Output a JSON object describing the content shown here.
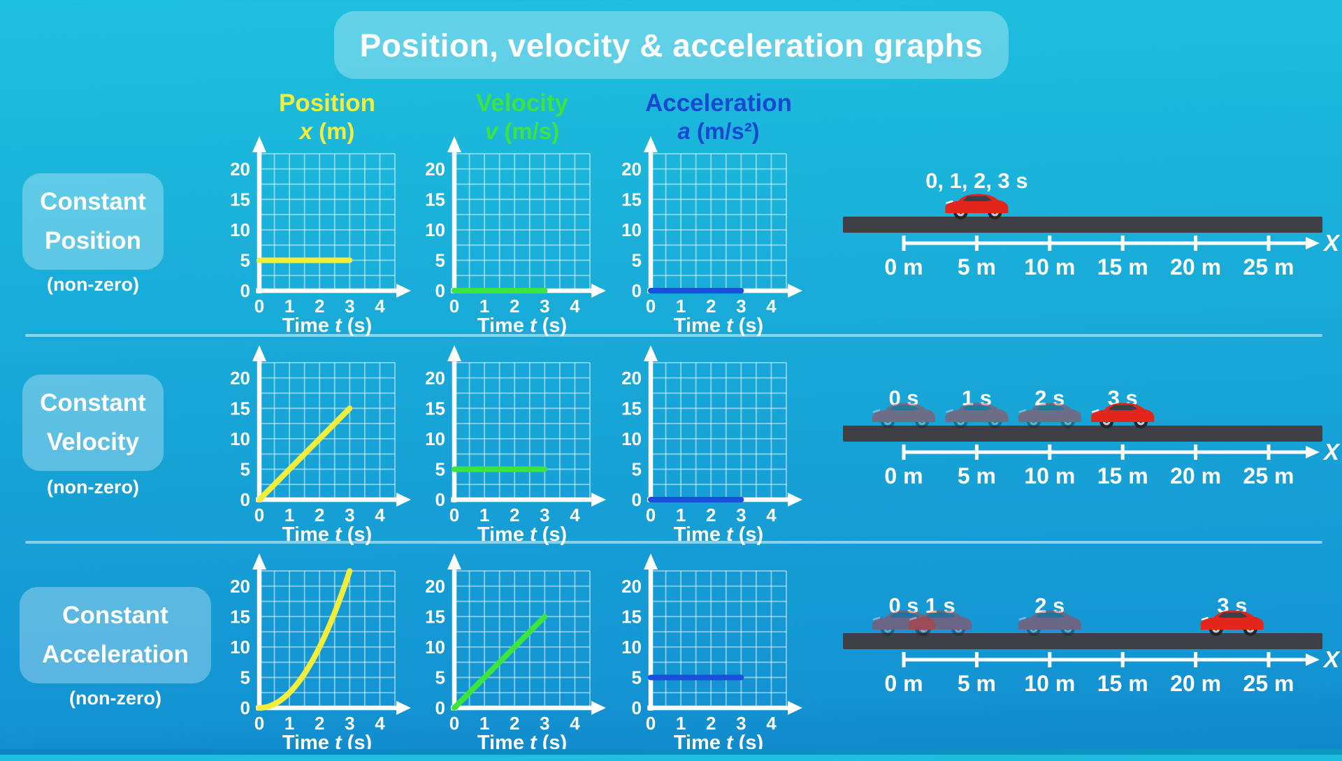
{
  "title": "Position, velocity & acceleration graphs",
  "columns": [
    {
      "title": "Position",
      "symbol_var": "x",
      "symbol_unit": "(m)",
      "color": "#f4ee3b"
    },
    {
      "title": "Velocity",
      "symbol_var": "v",
      "symbol_unit": "(m/s)",
      "color": "#3be43e"
    },
    {
      "title": "Acceleration",
      "symbol_var": "a",
      "symbol_unit": "(m/s²)",
      "color": "#1748d1"
    }
  ],
  "rows": [
    {
      "label": "Constant Position",
      "note": "(non-zero)"
    },
    {
      "label": "Constant Velocity",
      "note": "(non-zero)"
    },
    {
      "label": "Constant Acceleration",
      "note": "(non-zero)"
    }
  ],
  "axes": {
    "x_ticks": [
      "0",
      "1",
      "2",
      "3",
      "4"
    ],
    "y_ticks": [
      "0",
      "5",
      "10",
      "15",
      "20"
    ],
    "x_max": 4.5,
    "y_max": 22.5,
    "grid_step_x": 0.5,
    "grid_step_y": 2.5,
    "time_label": {
      "prefix": "Time",
      "var": "t",
      "unit": "(s)"
    }
  },
  "chart_data": [
    {
      "type": "line",
      "row": "Constant Position",
      "quantity": "position",
      "ylabel": "x (m)",
      "color": "#f4ee3b",
      "x": [
        0,
        3
      ],
      "y": [
        5,
        5
      ]
    },
    {
      "type": "line",
      "row": "Constant Position",
      "quantity": "velocity",
      "ylabel": "v (m/s)",
      "color": "#3be43e",
      "x": [
        0,
        3
      ],
      "y": [
        0,
        0
      ]
    },
    {
      "type": "line",
      "row": "Constant Position",
      "quantity": "acceleration",
      "ylabel": "a (m/s²)",
      "color": "#1a4fdb",
      "x": [
        0,
        3
      ],
      "y": [
        0,
        0
      ]
    },
    {
      "type": "line",
      "row": "Constant Velocity",
      "quantity": "position",
      "ylabel": "x (m)",
      "color": "#f4ee3b",
      "x": [
        0,
        3
      ],
      "y": [
        0,
        15
      ]
    },
    {
      "type": "line",
      "row": "Constant Velocity",
      "quantity": "velocity",
      "ylabel": "v (m/s)",
      "color": "#3be43e",
      "x": [
        0,
        3
      ],
      "y": [
        5,
        5
      ]
    },
    {
      "type": "line",
      "row": "Constant Velocity",
      "quantity": "acceleration",
      "ylabel": "a (m/s²)",
      "color": "#1a4fdb",
      "x": [
        0,
        3
      ],
      "y": [
        0,
        0
      ]
    },
    {
      "type": "line",
      "row": "Constant Acceleration",
      "quantity": "position",
      "ylabel": "x (m)",
      "color": "#f4ee3b",
      "curve": "quadratic",
      "x": [
        0,
        1,
        2,
        3
      ],
      "y": [
        0,
        2.5,
        10,
        22.5
      ]
    },
    {
      "type": "line",
      "row": "Constant Acceleration",
      "quantity": "velocity",
      "ylabel": "v (m/s)",
      "color": "#3be43e",
      "x": [
        0,
        3
      ],
      "y": [
        0,
        15
      ]
    },
    {
      "type": "line",
      "row": "Constant Acceleration",
      "quantity": "acceleration",
      "ylabel": "a (m/s²)",
      "color": "#1a4fdb",
      "x": [
        0,
        3
      ],
      "y": [
        5,
        5
      ]
    }
  ],
  "scenes": [
    {
      "row": "Constant Position",
      "time_labels": [
        {
          "text": "0, 1, 2, 3 s",
          "x_m": 5
        }
      ],
      "cars": [
        {
          "x_m": 5,
          "ghost": false
        }
      ],
      "ruler": {
        "tick_labels": [
          "0 m",
          "5 m",
          "10 m",
          "15 m",
          "20 m",
          "25 m"
        ],
        "tick_values_m": [
          0,
          5,
          10,
          15,
          20,
          25
        ],
        "axis_label": "X"
      }
    },
    {
      "row": "Constant Velocity",
      "time_labels": [
        {
          "text": "0 s",
          "x_m": 0
        },
        {
          "text": "1 s",
          "x_m": 5
        },
        {
          "text": "2 s",
          "x_m": 10
        },
        {
          "text": "3 s",
          "x_m": 15
        }
      ],
      "cars": [
        {
          "x_m": 0,
          "ghost": true
        },
        {
          "x_m": 5,
          "ghost": true
        },
        {
          "x_m": 10,
          "ghost": true
        },
        {
          "x_m": 15,
          "ghost": false
        }
      ],
      "ruler": {
        "tick_labels": [
          "0 m",
          "5 m",
          "10 m",
          "15 m",
          "20 m",
          "25 m"
        ],
        "tick_values_m": [
          0,
          5,
          10,
          15,
          20,
          25
        ],
        "axis_label": "X"
      }
    },
    {
      "row": "Constant Acceleration",
      "time_labels": [
        {
          "text": "0 s",
          "x_m": 0
        },
        {
          "text": "1 s",
          "x_m": 2.5
        },
        {
          "text": "2 s",
          "x_m": 10
        },
        {
          "text": "3 s",
          "x_m": 22.5
        }
      ],
      "cars": [
        {
          "x_m": 0,
          "ghost": true
        },
        {
          "x_m": 2.5,
          "ghost": true
        },
        {
          "x_m": 10,
          "ghost": true
        },
        {
          "x_m": 22.5,
          "ghost": false
        }
      ],
      "ruler": {
        "tick_labels": [
          "0 m",
          "5 m",
          "10 m",
          "15 m",
          "20 m",
          "25 m"
        ],
        "tick_values_m": [
          0,
          5,
          10,
          15,
          20,
          25
        ],
        "axis_label": "X"
      }
    }
  ],
  "colors": {
    "background_top": "#1ec1de",
    "background_bottom": "#1187cb",
    "panel": "rgba(255,255,255,0.30)",
    "road": "#3e4045",
    "car_red": "#e2261c",
    "ghost_opacity": 0.42,
    "grid": "rgba(255,255,255,0.5)",
    "axis": "#ffffff"
  }
}
